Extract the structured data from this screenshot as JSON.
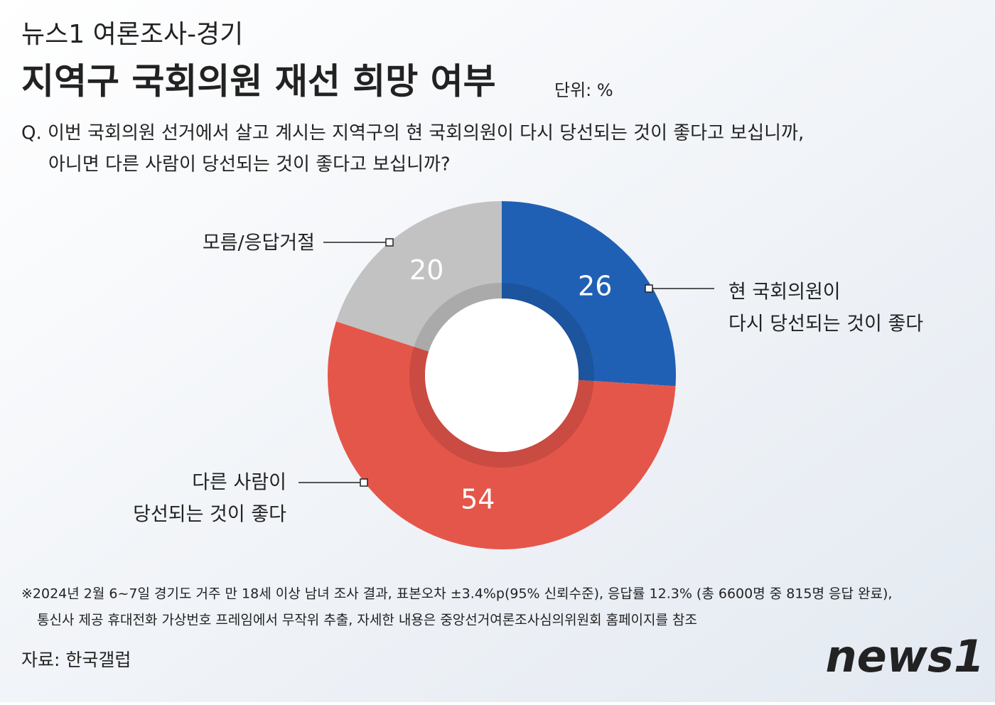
{
  "header": {
    "kicker": "뉴스1 여론조사-경기",
    "unit": "단위: %",
    "question": [
      "Q. 이번 국회의원 선거에서 살고 계시는 지역구의 현 국회의원이 다시 당선되는 것이 좋다고 보십니까,",
      "아니면 다른 사람이 당선되는 것이 좋다고 보십니까?"
    ]
  },
  "chart_data": {
    "type": "donut",
    "title": "지역구 국회의원 재선 희망 여부",
    "categories": [
      [
        "현 국회의원이",
        "다시 당선되는 것이 좋다"
      ],
      [
        "다른 사람이",
        "당선되는 것이 좋다"
      ],
      [
        "모름/응답거절"
      ]
    ],
    "values": [
      26,
      54,
      20
    ],
    "colors": [
      "#2060b4",
      "#e5564a",
      "#c2c2c2"
    ]
  },
  "footer": {
    "notes": [
      "※2024년 2월 6~7일 경기도 거주 만 18세 이상 남녀 조사 결과, 표본오차 ±3.4%p(95% 신뢰수준), 응답률 12.3% (총 6600명 중 815명 응답 완료),",
      "통신사 제공 휴대전화 가상번호 프레임에서 무작위 추출, 자세한 내용은 중앙선거여론조사심의위원회 홈페이지를 참조"
    ],
    "source": "자료: 한국갤럽",
    "logo": "news1"
  }
}
